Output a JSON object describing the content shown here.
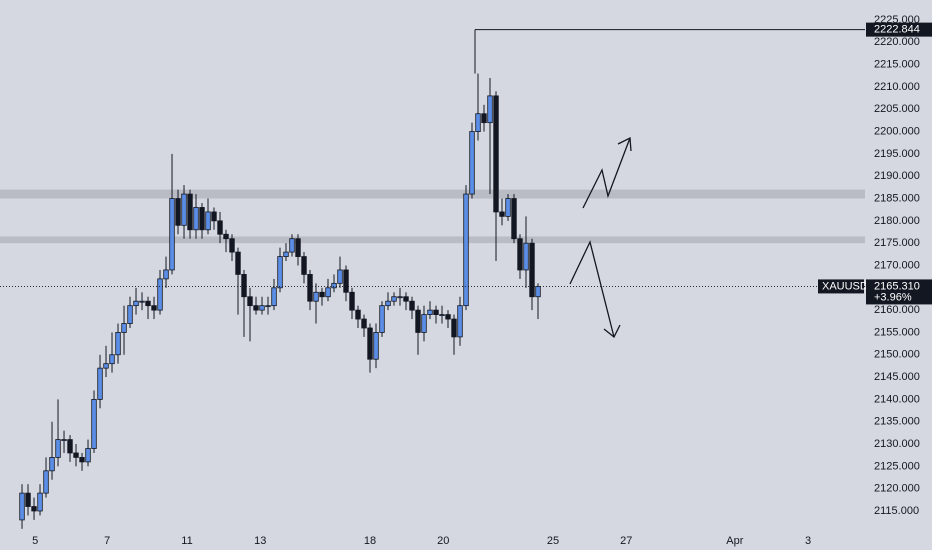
{
  "chart_data": {
    "type": "candlestick",
    "symbol": "XAUUSD",
    "last_price": {
      "value": 2165.31,
      "label": "2165.310"
    },
    "change": "+3.96%",
    "level": {
      "value": 2222.844,
      "label": "2222.844"
    },
    "zones": [
      [
        2185,
        2187
      ],
      [
        2175,
        2176.5
      ]
    ],
    "up_color": "#5b8ee6",
    "down_color": "#131722",
    "open": [
      2113,
      2119,
      2116,
      2115,
      2119,
      2124,
      2127,
      2131,
      2131,
      2128,
      2127,
      2126,
      2129,
      2140,
      2147,
      2148,
      2150,
      2155,
      2157,
      2161,
      2162,
      2162,
      2161,
      2160,
      2167,
      2169,
      2185,
      2179,
      2186,
      2178,
      2183,
      2178,
      2182,
      2180,
      2177,
      2176,
      2173,
      2168,
      2163,
      2161,
      2160,
      2161,
      2161,
      2165,
      2172,
      2173,
      2176,
      2172,
      2168,
      2162,
      2164,
      2163,
      2165,
      2166,
      2169,
      2164,
      2160,
      2158,
      2156,
      2149,
      2155,
      2161,
      2162,
      2163,
      2163,
      2162,
      2160,
      2155,
      2159,
      2160,
      2159,
      2159,
      2158,
      2154,
      2161,
      2186,
      2200,
      2204,
      2202,
      2208,
      2182,
      2181,
      2185,
      2176,
      2169,
      2175,
      2163
    ],
    "high": [
      2121,
      2121,
      2118,
      2121,
      2127,
      2135,
      2140,
      2133,
      2132,
      2130,
      2128,
      2131,
      2142,
      2150,
      2152,
      2155,
      2157,
      2161,
      2163,
      2165,
      2164,
      2163,
      2163,
      2169,
      2172,
      2195,
      2187,
      2188,
      2187,
      2186,
      2184,
      2185,
      2183,
      2182,
      2178,
      2177,
      2174,
      2169,
      2165,
      2163,
      2163,
      2163,
      2167,
      2174,
      2175,
      2177,
      2177,
      2173,
      2169,
      2166,
      2165,
      2167,
      2168,
      2172,
      2170,
      2165,
      2161,
      2159,
      2157,
      2157,
      2162,
      2164,
      2164,
      2165,
      2164,
      2163,
      2161,
      2161,
      2162,
      2161,
      2161,
      2160,
      2159,
      2163,
      2188,
      2202,
      2213,
      2206,
      2212,
      2209,
      2185,
      2186,
      2186,
      2177,
      2181,
      2176,
      2166
    ],
    "low": [
      2111,
      2114,
      2113,
      2114,
      2118,
      2122,
      2125,
      2128,
      2126,
      2125,
      2124,
      2125,
      2128,
      2138,
      2145,
      2146,
      2148,
      2150,
      2156,
      2159,
      2160,
      2158,
      2158,
      2159,
      2165,
      2168,
      2177,
      2176,
      2176,
      2176,
      2176,
      2177,
      2178,
      2175,
      2173,
      2171,
      2159,
      2154,
      2153,
      2159,
      2159,
      2159,
      2160,
      2164,
      2171,
      2172,
      2170,
      2166,
      2160,
      2157,
      2161,
      2162,
      2164,
      2165,
      2162,
      2158,
      2156,
      2154,
      2146,
      2147,
      2154,
      2160,
      2161,
      2161,
      2160,
      2158,
      2150,
      2153,
      2158,
      2157,
      2157,
      2156,
      2150,
      2152,
      2160,
      2185,
      2198,
      2200,
      2186,
      2171,
      2179,
      2180,
      2175,
      2167,
      2165,
      2160,
      2158
    ],
    "close": [
      2119,
      2116,
      2115,
      2119,
      2124,
      2127,
      2131,
      2131,
      2128,
      2127,
      2126,
      2129,
      2140,
      2147,
      2148,
      2150,
      2155,
      2157,
      2161,
      2162,
      2162,
      2161,
      2160,
      2167,
      2169,
      2185,
      2179,
      2186,
      2178,
      2183,
      2178,
      2182,
      2180,
      2177,
      2176,
      2173,
      2168,
      2163,
      2161,
      2160,
      2161,
      2161,
      2165,
      2172,
      2173,
      2176,
      2172,
      2168,
      2162,
      2164,
      2163,
      2165,
      2166,
      2169,
      2164,
      2160,
      2158,
      2156,
      2149,
      2155,
      2161,
      2162,
      2163,
      2163,
      2162,
      2160,
      2155,
      2159,
      2160,
      2159,
      2159,
      2158,
      2154,
      2161,
      2186,
      2200,
      2204,
      2202,
      2208,
      2182,
      2181,
      2185,
      2176,
      2169,
      2175,
      2163,
      2165.31
    ],
    "xlim": [
      -3.67,
      140.5
    ],
    "xticks": [
      {
        "value": 2.2,
        "label": "5"
      },
      {
        "value": 14.2,
        "label": "7"
      },
      {
        "value": 27.5,
        "label": "11"
      },
      {
        "value": 39.7,
        "label": "13"
      },
      {
        "value": 58,
        "label": "18"
      },
      {
        "value": 70.2,
        "label": "20"
      },
      {
        "value": 88.5,
        "label": "25"
      },
      {
        "value": 100.7,
        "label": "27"
      },
      {
        "value": 118.8,
        "label": "Apr"
      },
      {
        "value": 131,
        "label": "3"
      }
    ],
    "ylim": [
      2110.74,
      2229.48
    ],
    "yticks": [
      {
        "value": 2115,
        "label": "2115.000"
      },
      {
        "value": 2120,
        "label": "2120.000"
      },
      {
        "value": 2125,
        "label": "2125.000"
      },
      {
        "value": 2130,
        "label": "2130.000"
      },
      {
        "value": 2135,
        "label": "2135.000"
      },
      {
        "value": 2140,
        "label": "2140.000"
      },
      {
        "value": 2145,
        "label": "2145.000"
      },
      {
        "value": 2150,
        "label": "2150.000"
      },
      {
        "value": 2155,
        "label": "2155.000"
      },
      {
        "value": 2160,
        "label": "2160.000"
      },
      {
        "value": 2165,
        "label": "2165.000"
      },
      {
        "value": 2170,
        "label": "2170.000"
      },
      {
        "value": 2175,
        "label": "2175.000"
      },
      {
        "value": 2180,
        "label": "2180.000"
      },
      {
        "value": 2185,
        "label": "2185.000"
      },
      {
        "value": 2190,
        "label": "2190.000"
      },
      {
        "value": 2195,
        "label": "2195.000"
      },
      {
        "value": 2200,
        "label": "2200.000"
      },
      {
        "value": 2205,
        "label": "2205.000"
      },
      {
        "value": 2210,
        "label": "2210.000"
      },
      {
        "value": 2215,
        "label": "2215.000"
      },
      {
        "value": 2220,
        "label": "2220.000"
      },
      {
        "value": 2225,
        "label": "2225.000"
      }
    ]
  }
}
